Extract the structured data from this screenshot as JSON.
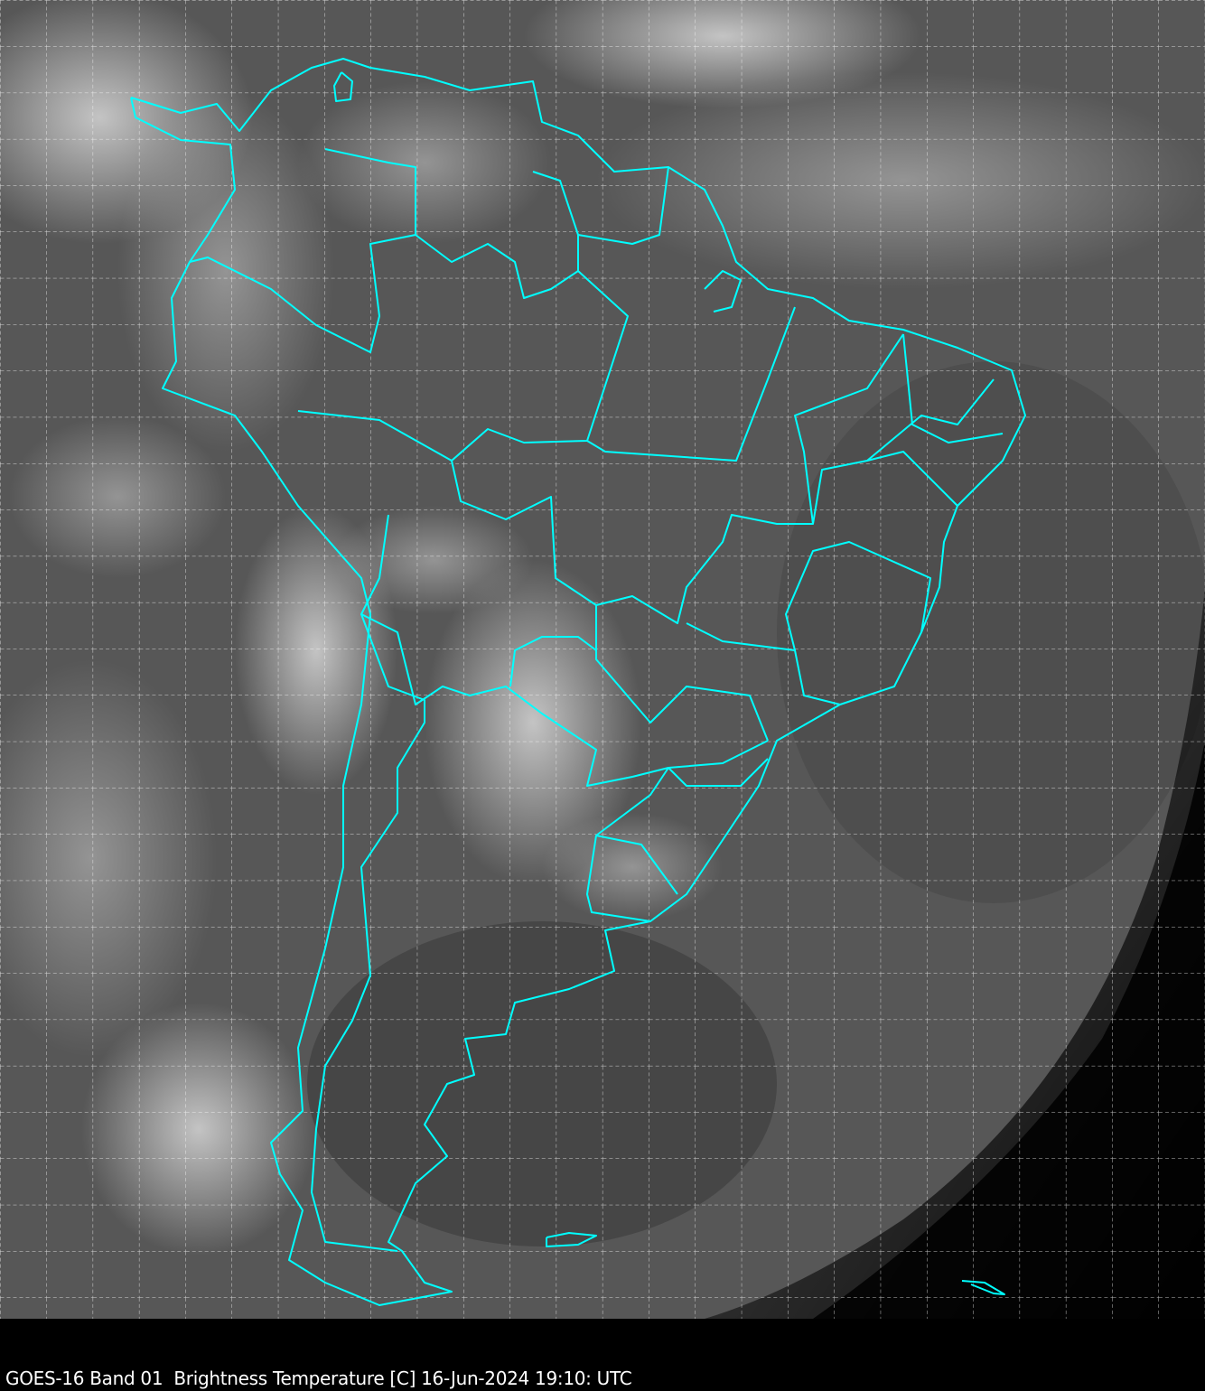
{
  "map": {
    "caption": "GOES-16 Band 01  Brightness Temperature [C] 16-Jun-2024 19:10: UTC",
    "border_color": "#00ffff",
    "grid_color": "#ffffff",
    "grid_style": "dashed",
    "imagery": "grayscale satellite"
  }
}
